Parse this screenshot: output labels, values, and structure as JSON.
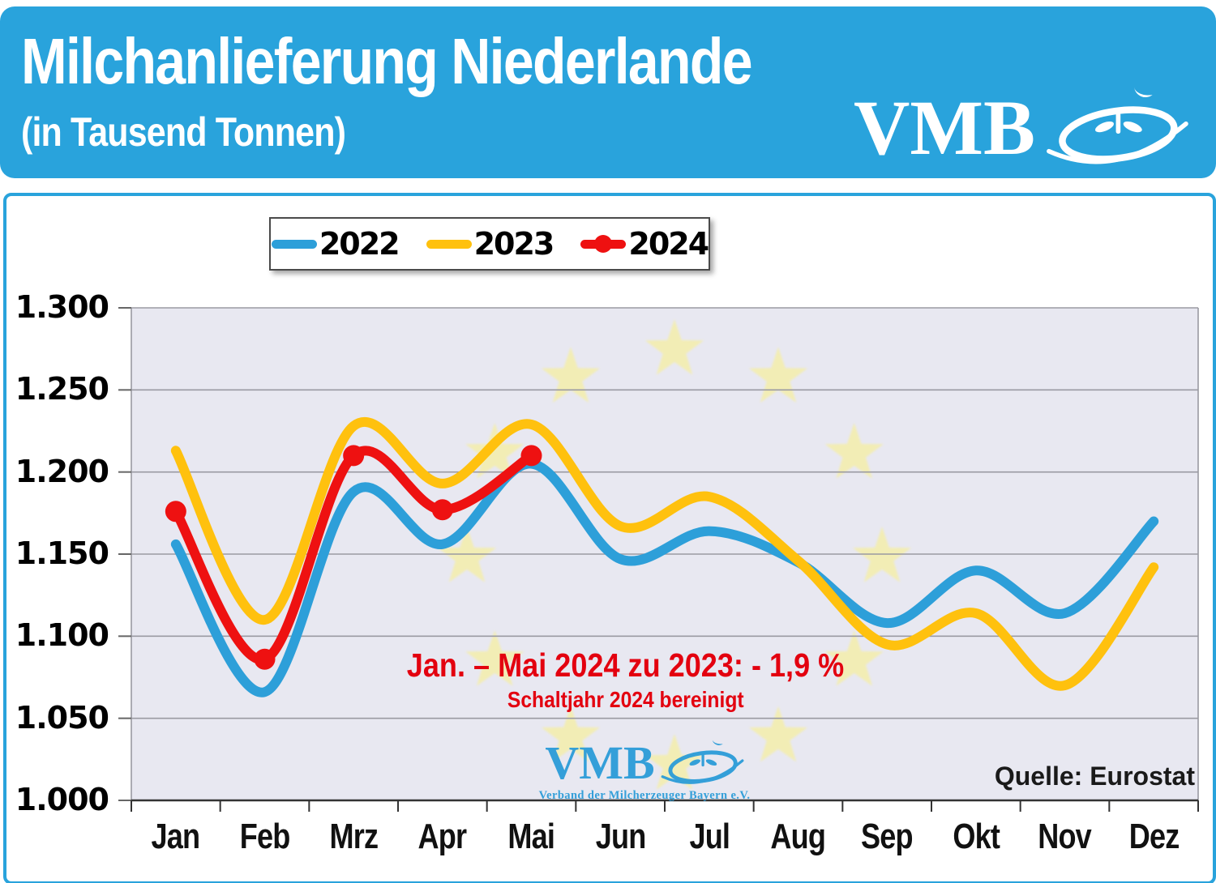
{
  "header": {
    "title": "Milchanlieferung Niederlande",
    "subtitle": "(in Tausend Tonnen)",
    "logo_text": "VMB"
  },
  "chart_data": {
    "type": "line",
    "title": "Milchanlieferung Niederlande",
    "unit_label": "in Tausend Tonnen",
    "categories": [
      "Jan",
      "Feb",
      "Mrz",
      "Apr",
      "Mai",
      "Jun",
      "Jul",
      "Aug",
      "Sep",
      "Okt",
      "Nov",
      "Dez"
    ],
    "y_tick_labels": [
      "1.300",
      "1.250",
      "1.200",
      "1.150",
      "1.100",
      "1.050",
      "1.000"
    ],
    "ylim": [
      1000,
      1300
    ],
    "grid": true,
    "smooth": true,
    "legend_position": "top-center",
    "background_emblem": "eu-stars-circle",
    "series": [
      {
        "name": "2022",
        "color": "#2d9fd9",
        "marker": false,
        "values": [
          1156,
          1066,
          1188,
          1156,
          1205,
          1147,
          1164,
          1145,
          1108,
          1140,
          1114,
          1170
        ]
      },
      {
        "name": "2023",
        "color": "#ffc10e",
        "marker": false,
        "values": [
          1213,
          1110,
          1228,
          1193,
          1229,
          1167,
          1185,
          1146,
          1095,
          1114,
          1070,
          1142
        ]
      },
      {
        "name": "2024",
        "color": "#ee1111",
        "marker": true,
        "values": [
          1176,
          1086,
          1210,
          1177,
          1210
        ]
      }
    ],
    "annotation": {
      "line1": "Jan. – Mai 2024 zu 2023: - 1,9 %",
      "line2": "Schaltjahr 2024 bereinigt",
      "color": "#e3000f"
    },
    "source": "Quelle: Eurostat"
  },
  "watermark": {
    "logo_text": "VMB",
    "caption": "Verband der Milcherzeuger Bayern e.V."
  },
  "colors": {
    "banner": "#29a3dc",
    "plot_background": "#e8e8f1",
    "star_yellow": "#f4eeab",
    "gridline": "#9a9aa2"
  }
}
